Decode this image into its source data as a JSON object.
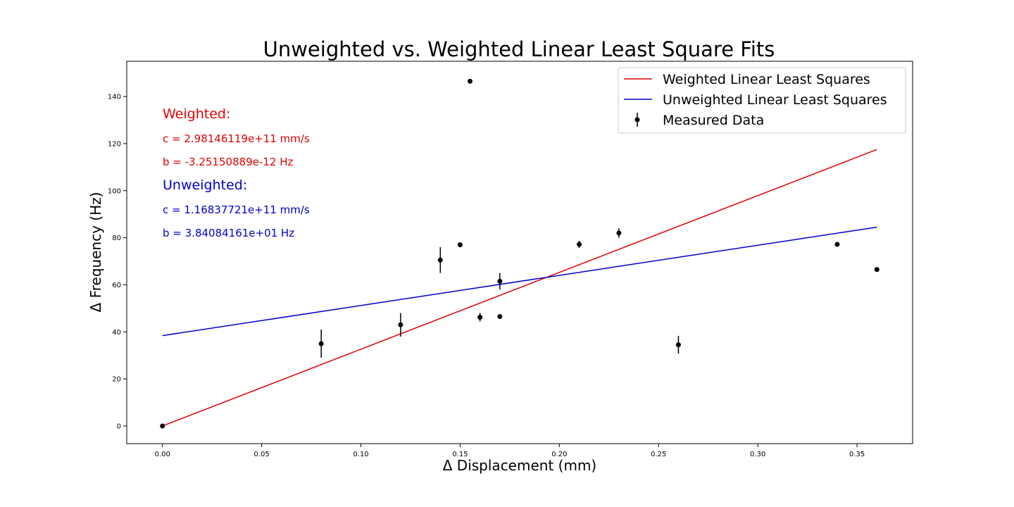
{
  "chart_data": {
    "type": "scatter",
    "title": "Unweighted vs. Weighted Linear Least Square Fits",
    "xlabel": "Δ Displacement (mm)",
    "ylabel": "Δ Frequency (Hz)",
    "xlim": [
      -0.018,
      0.378
    ],
    "ylim": [
      -7.5,
      155
    ],
    "xticks": [
      0.0,
      0.05,
      0.1,
      0.15,
      0.2,
      0.25,
      0.3,
      0.35
    ],
    "xtick_labels": [
      "0.00",
      "0.05",
      "0.10",
      "0.15",
      "0.20",
      "0.25",
      "0.30",
      "0.35"
    ],
    "yticks": [
      0,
      20,
      40,
      60,
      80,
      100,
      120,
      140
    ],
    "ytick_labels": [
      "0",
      "20",
      "40",
      "60",
      "80",
      "100",
      "120",
      "140"
    ],
    "grid": false,
    "legend_position": "top-right",
    "series": [
      {
        "name": "Weighted Linear Least Squares",
        "kind": "line",
        "color": "#e00000",
        "x": [
          0.0,
          0.36
        ],
        "y": [
          0.0,
          117.5
        ]
      },
      {
        "name": "Unweighted Linear Least Squares",
        "kind": "line",
        "color": "#0000cc",
        "x": [
          0.0,
          0.36
        ],
        "y": [
          38.4,
          84.5
        ]
      },
      {
        "name": "Measured Data",
        "kind": "errorbar",
        "color": "#000000",
        "points": [
          {
            "x": 0.0,
            "y": 0.0,
            "err": 0.0
          },
          {
            "x": 0.08,
            "y": 35.0,
            "err": 6.0
          },
          {
            "x": 0.12,
            "y": 43.0,
            "err": 5.0
          },
          {
            "x": 0.14,
            "y": 70.5,
            "err": 5.5
          },
          {
            "x": 0.15,
            "y": 77.0,
            "err": 1.0
          },
          {
            "x": 0.155,
            "y": 146.5,
            "err": 0.0
          },
          {
            "x": 0.16,
            "y": 46.2,
            "err": 1.8
          },
          {
            "x": 0.17,
            "y": 61.5,
            "err": 3.5
          },
          {
            "x": 0.17,
            "y": 46.5,
            "err": 0.0
          },
          {
            "x": 0.21,
            "y": 77.2,
            "err": 1.5
          },
          {
            "x": 0.23,
            "y": 82.0,
            "err": 2.0
          },
          {
            "x": 0.26,
            "y": 34.5,
            "err": 3.8
          },
          {
            "x": 0.34,
            "y": 77.2,
            "err": 0.0
          },
          {
            "x": 0.36,
            "y": 66.5,
            "err": 0.0
          }
        ]
      }
    ],
    "annotations": [
      {
        "text": "Weighted:",
        "color": "#e00000",
        "style": "heading"
      },
      {
        "text": "c = 2.98146119e+11 mm/s",
        "color": "#e00000",
        "style": "body"
      },
      {
        "text": "b = -3.25150889e-12 Hz",
        "color": "#e00000",
        "style": "body"
      },
      {
        "text": "Unweighted:",
        "color": "#0000cc",
        "style": "heading"
      },
      {
        "text": "c = 1.16837721e+11 mm/s",
        "color": "#0000cc",
        "style": "body"
      },
      {
        "text": "b = 3.84084161e+01 Hz",
        "color": "#0000cc",
        "style": "body"
      }
    ]
  }
}
